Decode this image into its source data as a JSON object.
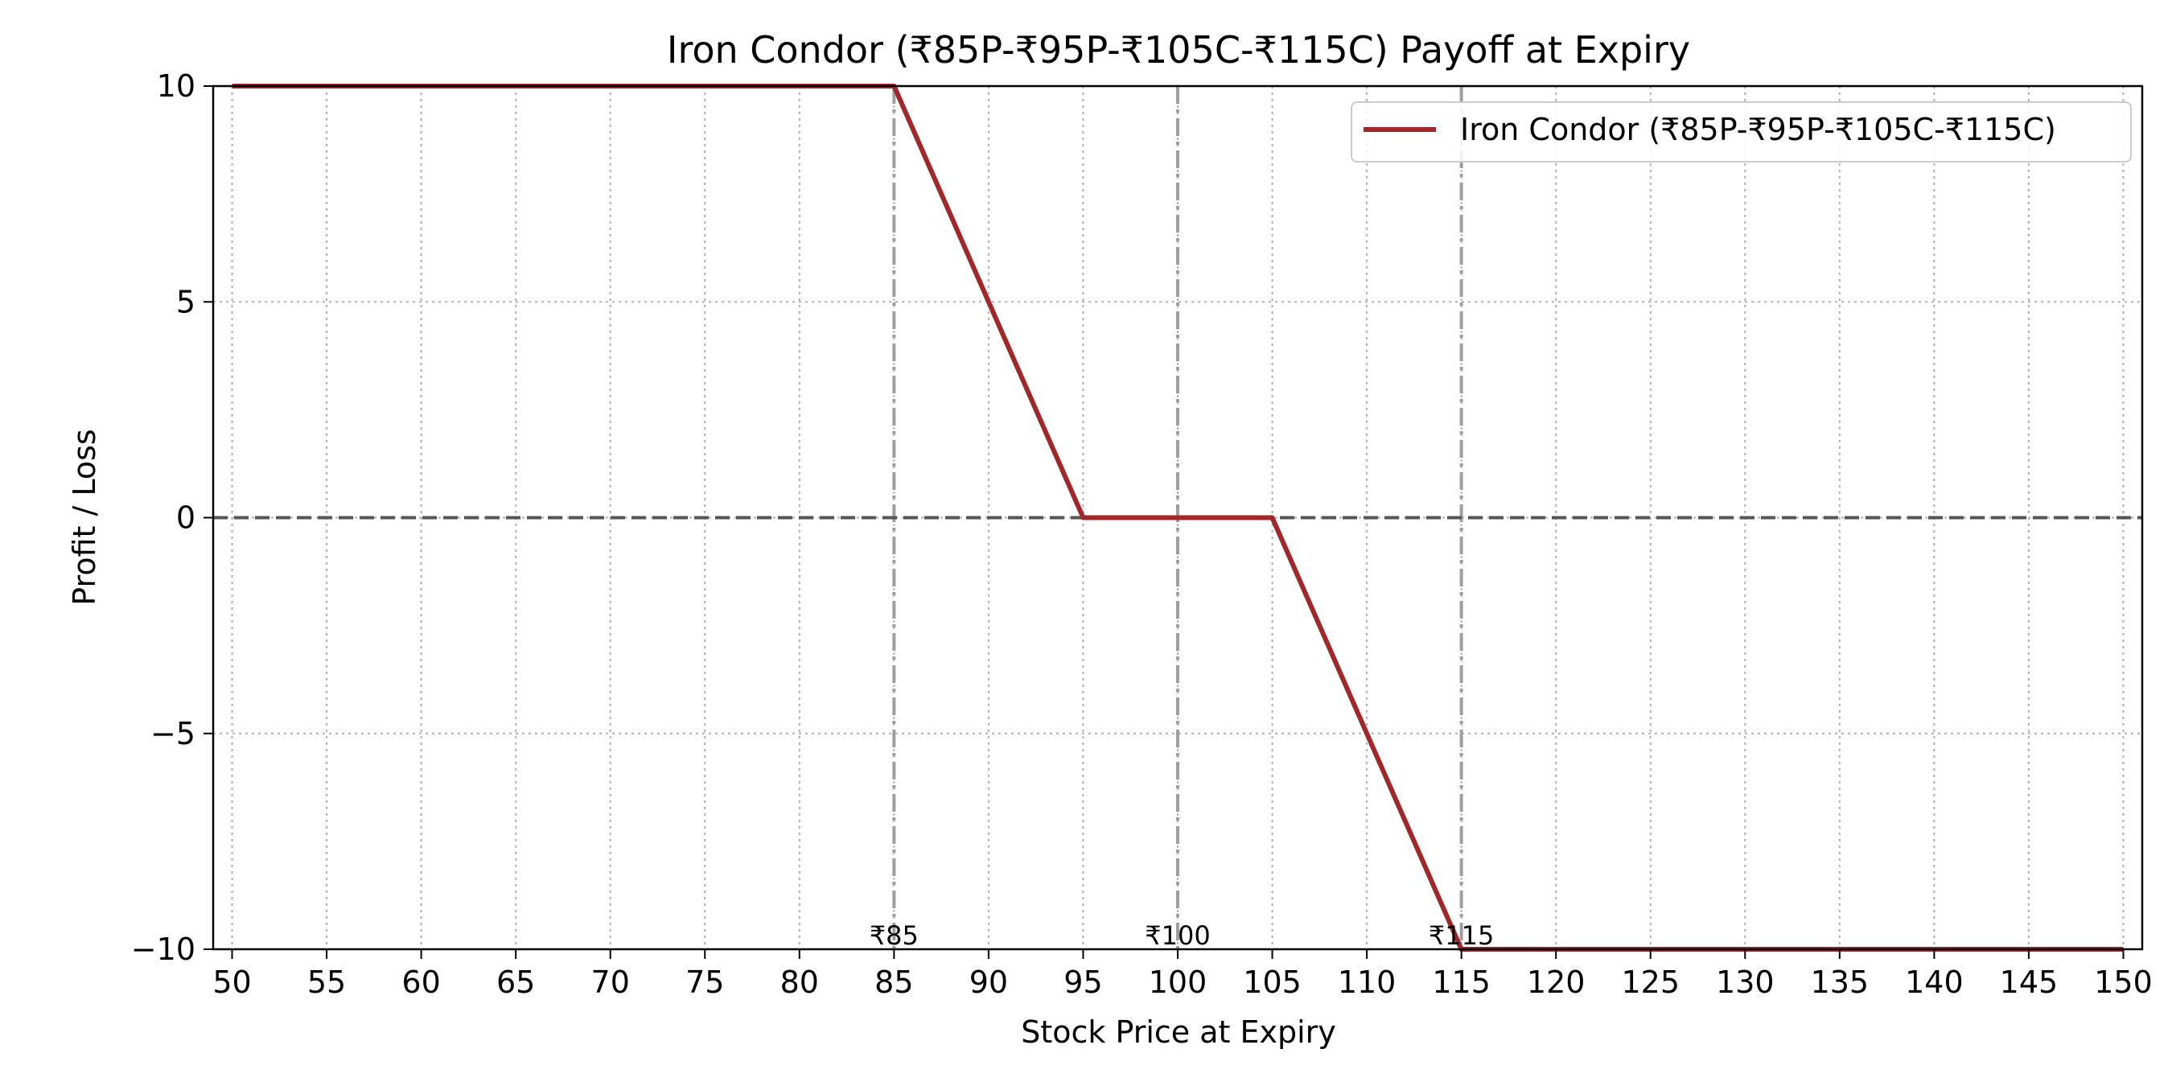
{
  "chart_data": {
    "type": "line",
    "title": "Iron Condor (₹85P-₹95P-₹105C-₹115C) Payoff at Expiry",
    "xlabel": "Stock Price at Expiry",
    "ylabel": "Profit / Loss",
    "xlim": [
      49,
      151
    ],
    "ylim": [
      -10,
      10
    ],
    "x_ticks": [
      50,
      55,
      60,
      65,
      70,
      75,
      80,
      85,
      90,
      95,
      100,
      105,
      110,
      115,
      120,
      125,
      130,
      135,
      140,
      145,
      150
    ],
    "y_ticks": [
      {
        "value": -10,
        "label": "−10"
      },
      {
        "value": -5,
        "label": "−5"
      },
      {
        "value": 0,
        "label": "0"
      },
      {
        "value": 5,
        "label": "5"
      },
      {
        "value": 10,
        "label": "10"
      }
    ],
    "grid": true,
    "legend_position": "top-right",
    "series": [
      {
        "name": "Iron Condor (₹85P-₹95P-₹105C-₹115C)",
        "color": "#a0282a",
        "x": [
          50,
          85,
          95,
          105,
          115,
          150
        ],
        "y": [
          10,
          10,
          0,
          0,
          -10,
          -10
        ]
      }
    ],
    "reference_lines": {
      "horizontal": [
        {
          "y": 0,
          "color": "#555555"
        }
      ],
      "vertical": [
        {
          "x": 85,
          "label": "₹85"
        },
        {
          "x": 100,
          "label": "₹100"
        },
        {
          "x": 115,
          "label": "₹115"
        }
      ]
    }
  }
}
